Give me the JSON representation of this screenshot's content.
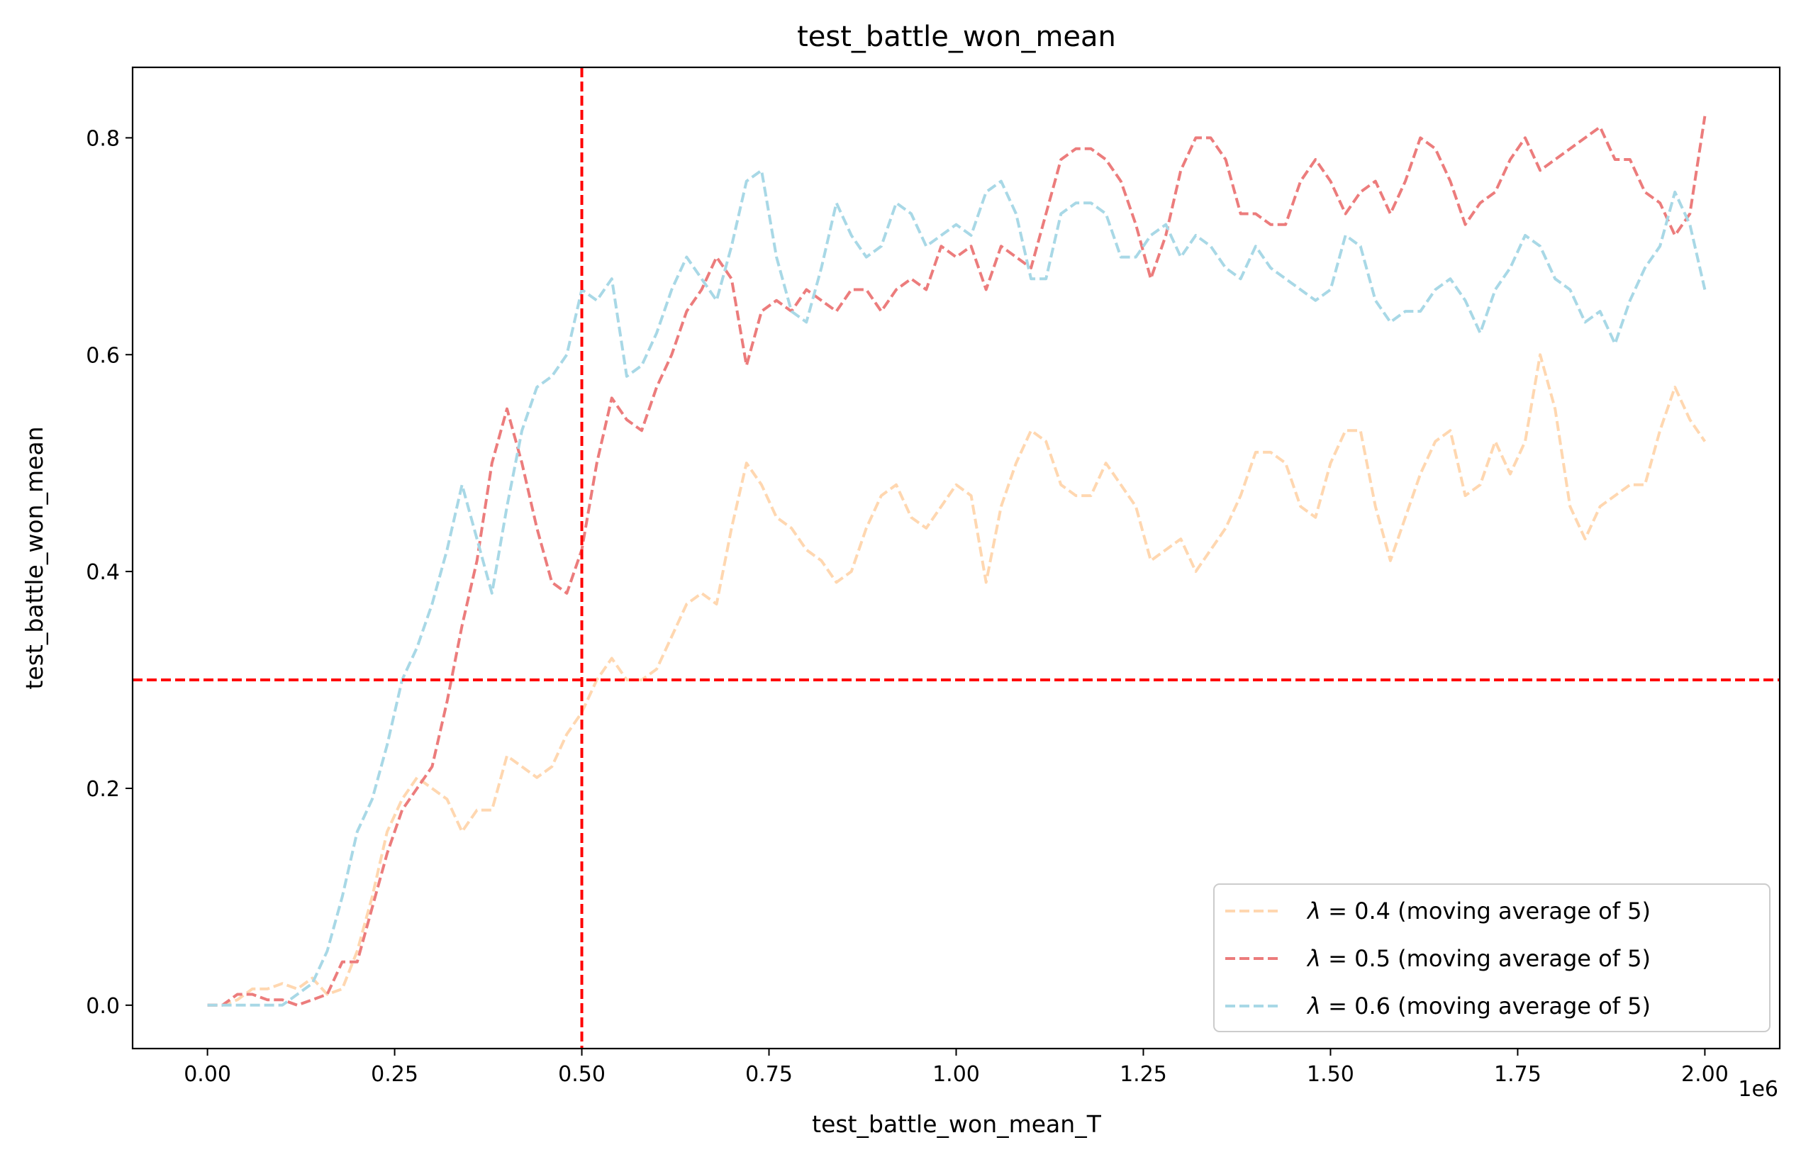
{
  "chart_data": {
    "type": "line",
    "title": "test_battle_won_mean",
    "xlabel": "test_battle_won_mean_T",
    "ylabel": "test_battle_won_mean",
    "x_multiplier_label": "1e6",
    "xlim": [
      -0.1,
      2.1
    ],
    "ylim": [
      -0.04,
      0.865
    ],
    "x_ticks": [
      0.0,
      0.25,
      0.5,
      0.75,
      1.0,
      1.25,
      1.5,
      1.75,
      2.0
    ],
    "x_tick_labels": [
      "0.00",
      "0.25",
      "0.50",
      "0.75",
      "1.00",
      "1.25",
      "1.50",
      "1.75",
      "2.00"
    ],
    "y_ticks": [
      0.0,
      0.2,
      0.4,
      0.6,
      0.8
    ],
    "y_tick_labels": [
      "0.0",
      "0.2",
      "0.4",
      "0.6",
      "0.8"
    ],
    "grid": false,
    "legend_position": "bottom-right",
    "reference_lines": [
      {
        "orientation": "vertical",
        "value": 0.5,
        "color": "#ff0000",
        "style": "dashed"
      },
      {
        "orientation": "horizontal",
        "value": 0.3,
        "color": "#ff0000",
        "style": "dashed"
      }
    ],
    "series": [
      {
        "name": "λ = 0.4 (moving average of 5)",
        "label_symbol": "λ",
        "label_rest": " = 0.4 (moving average of 5)",
        "color": "#ffd7b0",
        "x": [
          0.0,
          0.02,
          0.04,
          0.06,
          0.08,
          0.1,
          0.12,
          0.14,
          0.16,
          0.18,
          0.2,
          0.22,
          0.24,
          0.26,
          0.28,
          0.3,
          0.32,
          0.34,
          0.36,
          0.38,
          0.4,
          0.42,
          0.44,
          0.46,
          0.48,
          0.5,
          0.52,
          0.54,
          0.56,
          0.58,
          0.6,
          0.62,
          0.64,
          0.66,
          0.68,
          0.7,
          0.72,
          0.74,
          0.76,
          0.78,
          0.8,
          0.82,
          0.84,
          0.86,
          0.88,
          0.9,
          0.92,
          0.94,
          0.96,
          0.98,
          1.0,
          1.02,
          1.04,
          1.06,
          1.08,
          1.1,
          1.12,
          1.14,
          1.16,
          1.18,
          1.2,
          1.22,
          1.24,
          1.26,
          1.28,
          1.3,
          1.32,
          1.34,
          1.36,
          1.38,
          1.4,
          1.42,
          1.44,
          1.46,
          1.48,
          1.5,
          1.52,
          1.54,
          1.56,
          1.58,
          1.6,
          1.62,
          1.64,
          1.66,
          1.68,
          1.7,
          1.72,
          1.74,
          1.76,
          1.78,
          1.8,
          1.82,
          1.84,
          1.86,
          1.88,
          1.9,
          1.92,
          1.94,
          1.96,
          1.98,
          2.0
        ],
        "values": [
          0.0,
          0.0,
          0.005,
          0.015,
          0.015,
          0.02,
          0.015,
          0.025,
          0.01,
          0.015,
          0.05,
          0.1,
          0.16,
          0.19,
          0.21,
          0.2,
          0.19,
          0.16,
          0.18,
          0.18,
          0.23,
          0.22,
          0.21,
          0.22,
          0.25,
          0.27,
          0.3,
          0.32,
          0.3,
          0.3,
          0.31,
          0.34,
          0.37,
          0.38,
          0.37,
          0.44,
          0.5,
          0.48,
          0.45,
          0.44,
          0.42,
          0.41,
          0.39,
          0.4,
          0.44,
          0.47,
          0.48,
          0.45,
          0.44,
          0.46,
          0.48,
          0.47,
          0.39,
          0.46,
          0.5,
          0.53,
          0.52,
          0.48,
          0.47,
          0.47,
          0.5,
          0.48,
          0.46,
          0.41,
          0.42,
          0.43,
          0.4,
          0.42,
          0.44,
          0.47,
          0.51,
          0.51,
          0.5,
          0.46,
          0.45,
          0.5,
          0.53,
          0.53,
          0.46,
          0.41,
          0.45,
          0.49,
          0.52,
          0.53,
          0.47,
          0.48,
          0.52,
          0.49,
          0.52,
          0.6,
          0.55,
          0.46,
          0.43,
          0.46,
          0.47,
          0.48,
          0.48,
          0.53,
          0.57,
          0.54,
          0.52
        ]
      },
      {
        "name": "λ = 0.5 (moving average of 5)",
        "label_symbol": "λ",
        "label_rest": " = 0.5 (moving average of 5)",
        "color": "#ec7c7c",
        "x": [
          0.0,
          0.02,
          0.04,
          0.06,
          0.08,
          0.1,
          0.12,
          0.14,
          0.16,
          0.18,
          0.2,
          0.22,
          0.24,
          0.26,
          0.28,
          0.3,
          0.32,
          0.34,
          0.36,
          0.38,
          0.4,
          0.42,
          0.44,
          0.46,
          0.48,
          0.5,
          0.52,
          0.54,
          0.56,
          0.58,
          0.6,
          0.62,
          0.64,
          0.66,
          0.68,
          0.7,
          0.72,
          0.74,
          0.76,
          0.78,
          0.8,
          0.82,
          0.84,
          0.86,
          0.88,
          0.9,
          0.92,
          0.94,
          0.96,
          0.98,
          1.0,
          1.02,
          1.04,
          1.06,
          1.08,
          1.1,
          1.12,
          1.14,
          1.16,
          1.18,
          1.2,
          1.22,
          1.24,
          1.26,
          1.28,
          1.3,
          1.32,
          1.34,
          1.36,
          1.38,
          1.4,
          1.42,
          1.44,
          1.46,
          1.48,
          1.5,
          1.52,
          1.54,
          1.56,
          1.58,
          1.6,
          1.62,
          1.64,
          1.66,
          1.68,
          1.7,
          1.72,
          1.74,
          1.76,
          1.78,
          1.8,
          1.82,
          1.84,
          1.86,
          1.88,
          1.9,
          1.92,
          1.94,
          1.96,
          1.98,
          2.0
        ],
        "values": [
          0.0,
          0.0,
          0.01,
          0.01,
          0.005,
          0.005,
          0.0,
          0.005,
          0.01,
          0.04,
          0.04,
          0.09,
          0.14,
          0.18,
          0.2,
          0.22,
          0.28,
          0.35,
          0.41,
          0.5,
          0.55,
          0.5,
          0.44,
          0.39,
          0.38,
          0.42,
          0.5,
          0.56,
          0.54,
          0.53,
          0.57,
          0.6,
          0.64,
          0.66,
          0.69,
          0.67,
          0.59,
          0.64,
          0.65,
          0.64,
          0.66,
          0.65,
          0.64,
          0.66,
          0.66,
          0.64,
          0.66,
          0.67,
          0.66,
          0.7,
          0.69,
          0.7,
          0.66,
          0.7,
          0.69,
          0.68,
          0.73,
          0.78,
          0.79,
          0.79,
          0.78,
          0.76,
          0.72,
          0.67,
          0.71,
          0.77,
          0.8,
          0.8,
          0.78,
          0.73,
          0.73,
          0.72,
          0.72,
          0.76,
          0.78,
          0.76,
          0.73,
          0.75,
          0.76,
          0.73,
          0.76,
          0.8,
          0.79,
          0.76,
          0.72,
          0.74,
          0.75,
          0.78,
          0.8,
          0.77,
          0.78,
          0.79,
          0.8,
          0.81,
          0.78,
          0.78,
          0.75,
          0.74,
          0.71,
          0.73,
          0.82
        ]
      },
      {
        "name": "λ = 0.6 (moving average of 5)",
        "label_symbol": "λ",
        "label_rest": " = 0.6 (moving average of 5)",
        "color": "#a8d8e6",
        "x": [
          0.0,
          0.02,
          0.04,
          0.06,
          0.08,
          0.1,
          0.12,
          0.14,
          0.16,
          0.18,
          0.2,
          0.22,
          0.24,
          0.26,
          0.28,
          0.3,
          0.32,
          0.34,
          0.36,
          0.38,
          0.4,
          0.42,
          0.44,
          0.46,
          0.48,
          0.5,
          0.52,
          0.54,
          0.56,
          0.58,
          0.6,
          0.62,
          0.64,
          0.66,
          0.68,
          0.7,
          0.72,
          0.74,
          0.76,
          0.78,
          0.8,
          0.82,
          0.84,
          0.86,
          0.88,
          0.9,
          0.92,
          0.94,
          0.96,
          0.98,
          1.0,
          1.02,
          1.04,
          1.06,
          1.08,
          1.1,
          1.12,
          1.14,
          1.16,
          1.18,
          1.2,
          1.22,
          1.24,
          1.26,
          1.28,
          1.3,
          1.32,
          1.34,
          1.36,
          1.38,
          1.4,
          1.42,
          1.44,
          1.46,
          1.48,
          1.5,
          1.52,
          1.54,
          1.56,
          1.58,
          1.6,
          1.62,
          1.64,
          1.66,
          1.68,
          1.7,
          1.72,
          1.74,
          1.76,
          1.78,
          1.8,
          1.82,
          1.84,
          1.86,
          1.88,
          1.9,
          1.92,
          1.94,
          1.96,
          1.98,
          2.0
        ],
        "values": [
          0.0,
          0.0,
          0.0,
          0.0,
          0.0,
          0.0,
          0.01,
          0.02,
          0.05,
          0.1,
          0.16,
          0.19,
          0.24,
          0.3,
          0.33,
          0.37,
          0.42,
          0.48,
          0.43,
          0.38,
          0.46,
          0.53,
          0.57,
          0.58,
          0.6,
          0.66,
          0.65,
          0.67,
          0.58,
          0.59,
          0.62,
          0.66,
          0.69,
          0.67,
          0.65,
          0.7,
          0.76,
          0.77,
          0.69,
          0.64,
          0.63,
          0.68,
          0.74,
          0.71,
          0.69,
          0.7,
          0.74,
          0.73,
          0.7,
          0.71,
          0.72,
          0.71,
          0.75,
          0.76,
          0.73,
          0.67,
          0.67,
          0.73,
          0.74,
          0.74,
          0.73,
          0.69,
          0.69,
          0.71,
          0.72,
          0.69,
          0.71,
          0.7,
          0.68,
          0.67,
          0.7,
          0.68,
          0.67,
          0.66,
          0.65,
          0.66,
          0.71,
          0.7,
          0.65,
          0.63,
          0.64,
          0.64,
          0.66,
          0.67,
          0.65,
          0.62,
          0.66,
          0.68,
          0.71,
          0.7,
          0.67,
          0.66,
          0.63,
          0.64,
          0.61,
          0.65,
          0.68,
          0.7,
          0.75,
          0.72,
          0.66
        ]
      }
    ]
  }
}
